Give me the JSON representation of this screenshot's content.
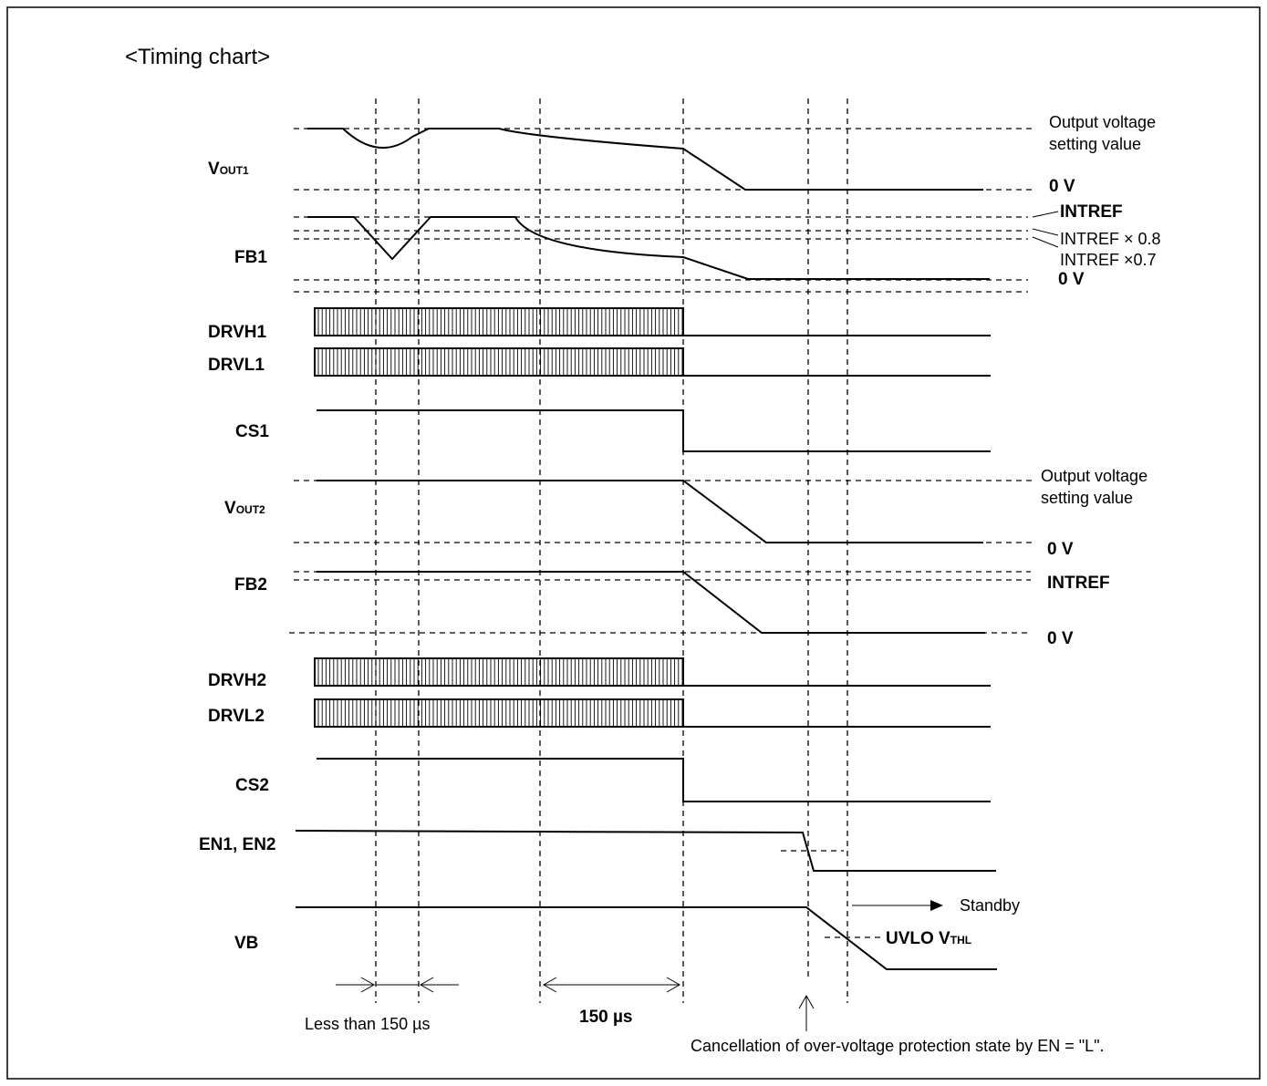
{
  "title": "<Timing chart>",
  "signals": {
    "vout1": {
      "main": "V",
      "sub": "OUT1"
    },
    "fb1": "FB1",
    "drvh1": "DRVH1",
    "drvl1": "DRVL1",
    "cs1": "CS1",
    "vout2": {
      "main": "V",
      "sub": "OUT2"
    },
    "fb2": "FB2",
    "drvh2": "DRVH2",
    "drvl2": "DRVL2",
    "cs2": "CS2",
    "en": "EN1, EN2",
    "vb": "VB"
  },
  "levels": {
    "vout1_setting_line1": "Output voltage",
    "vout1_setting_line2": "setting value",
    "vout1_zero": "0 V",
    "intref": "INTREF",
    "intref_08": "INTREF × 0.8",
    "intref_07": "INTREF ×0.7",
    "fb1_zero": "0 V",
    "vout2_setting_line1": "Output voltage",
    "vout2_setting_line2": "setting value",
    "vout2_zero": "0 V",
    "fb2_intref": "INTREF",
    "fb2_zero": "0 V",
    "standby": "Standby",
    "uvlo": {
      "main": "UVLO V",
      "sub": "THL"
    }
  },
  "annotations": {
    "less_than": "Less than 150 µs",
    "duration": "150 µs",
    "cancellation": "Cancellation of over-voltage protection state by EN = \"L\"."
  }
}
